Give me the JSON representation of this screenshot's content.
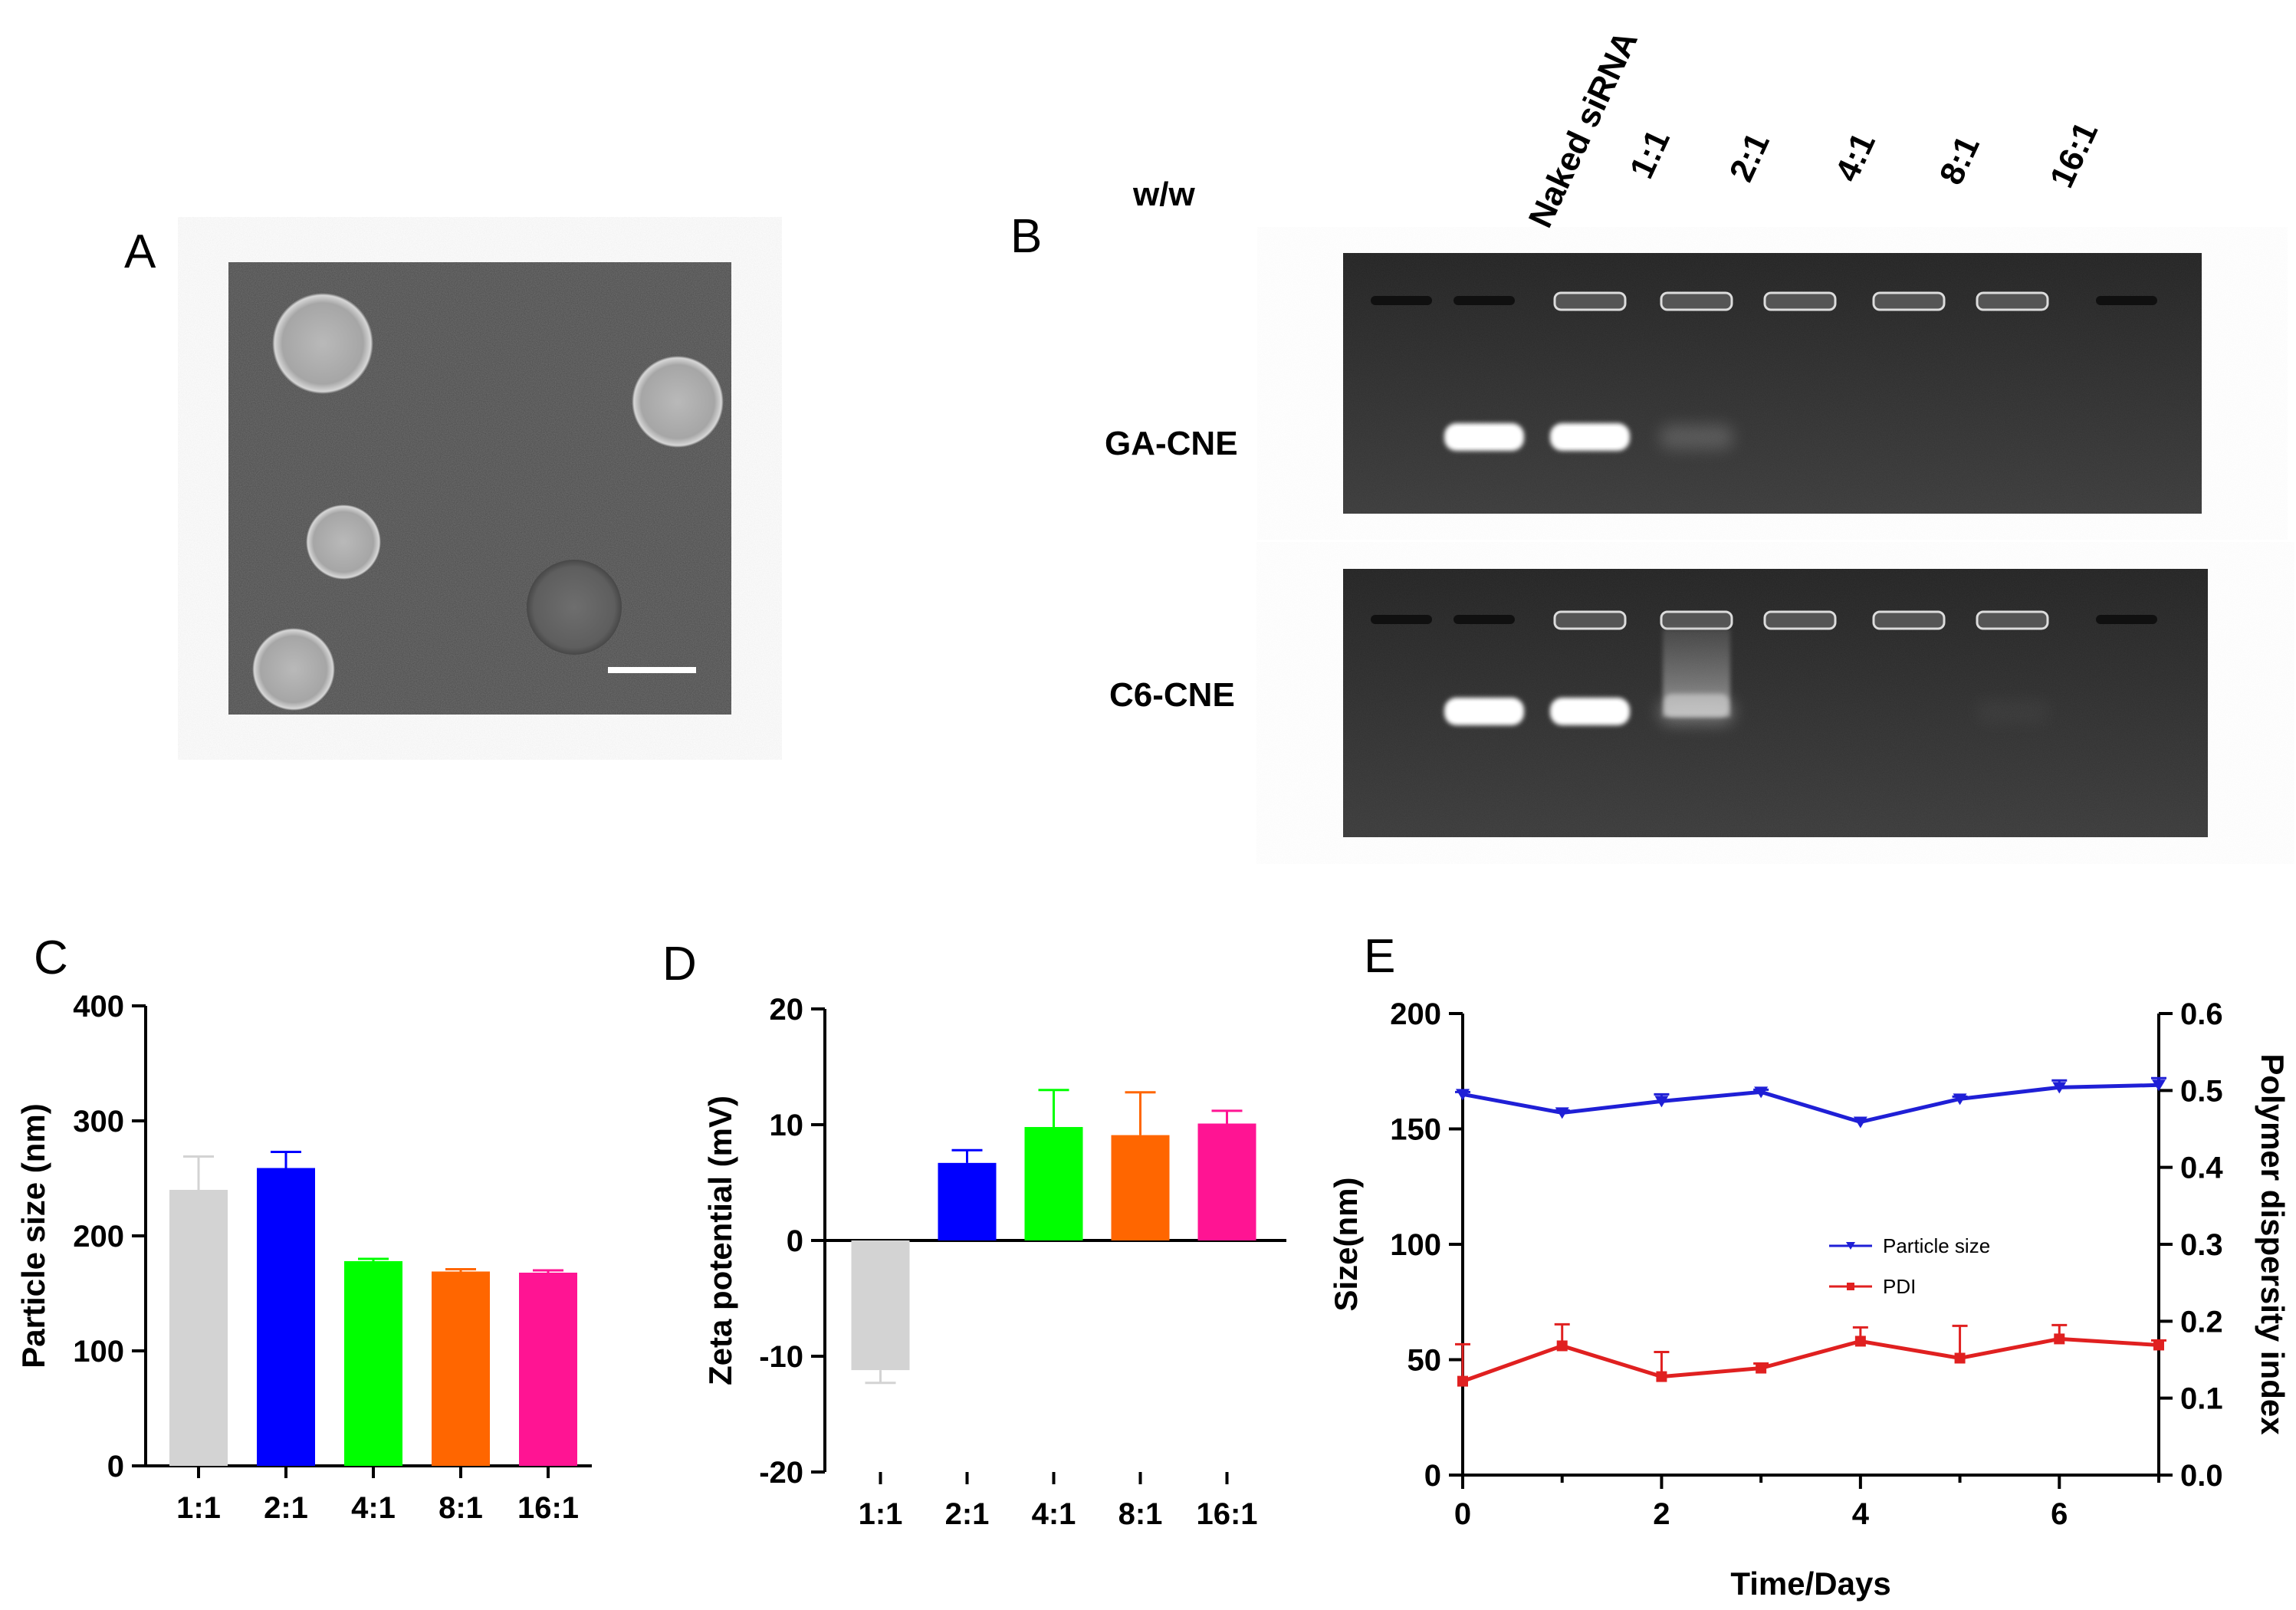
{
  "panels": {
    "A": {
      "letter": "A",
      "tem_image": "tem-micrograph-with-scale-bar"
    },
    "B": {
      "letter": "B",
      "ratio_caption": "w/w",
      "lanes": [
        "Naked siRNA",
        "1:1",
        "2:1",
        "4:1",
        "8:1",
        "16:1"
      ],
      "gels": [
        {
          "label": "GA-CNE",
          "band_intensity": [
            0,
            1.0,
            1.0,
            0.25,
            0,
            0,
            0,
            0
          ]
        },
        {
          "label": "C6-CNE",
          "band_intensity": [
            0,
            1.0,
            1.0,
            0.45,
            0,
            0,
            0.05,
            0
          ]
        }
      ]
    },
    "C": {
      "letter": "C"
    },
    "D": {
      "letter": "D"
    },
    "E": {
      "letter": "E"
    }
  },
  "chart_data": [
    {
      "panel": "C",
      "type": "bar",
      "categories": [
        "1:1",
        "2:1",
        "4:1",
        "8:1",
        "16:1"
      ],
      "values": [
        240,
        259,
        178,
        169,
        168
      ],
      "errors": [
        29,
        14,
        2,
        2,
        2
      ],
      "colors": [
        "#d3d3d3",
        "#0000ff",
        "#00ff00",
        "#ff6600",
        "#ff1493"
      ],
      "ylabel": "Particle size (nm)",
      "ylim": [
        0,
        400
      ],
      "yticks": [
        0,
        100,
        200,
        300,
        400
      ],
      "grid": false
    },
    {
      "panel": "D",
      "type": "bar",
      "categories": [
        "1:1",
        "2:1",
        "4:1",
        "8:1",
        "16:1"
      ],
      "values": [
        -11.2,
        6.7,
        9.8,
        9.1,
        10.1
      ],
      "errors": [
        1.1,
        1.1,
        3.2,
        3.7,
        1.1
      ],
      "colors": [
        "#d3d3d3",
        "#0000ff",
        "#00ff00",
        "#ff6600",
        "#ff1493"
      ],
      "ylabel": "Zeta potential  (mV)",
      "ylim": [
        -20,
        20
      ],
      "yticks": [
        -20,
        -10,
        0,
        10,
        20
      ],
      "grid": false
    },
    {
      "panel": "E",
      "type": "line",
      "xlabel": "Time/Days",
      "ylabel": "Size(nm)",
      "y2label": "Polymer dispersity index",
      "xlim": [
        0,
        7
      ],
      "xticks": [
        0,
        2,
        4,
        6
      ],
      "ylim": [
        0,
        200
      ],
      "yticks": [
        0,
        50,
        100,
        150,
        200
      ],
      "y2lim": [
        0.0,
        0.6
      ],
      "y2ticks": [
        "0.0",
        "0.1",
        "0.2",
        "0.3",
        "0.4",
        "0.5",
        "0.6"
      ],
      "legend_position": "center-right",
      "grid": false,
      "series": [
        {
          "name": "Particle size",
          "axis": "left",
          "color": "#1f1fd6",
          "marker": "triangle-down",
          "x": [
            0,
            1,
            2,
            3,
            4,
            5,
            6,
            7
          ],
          "y": [
            165,
            157,
            162,
            166,
            153,
            163,
            168,
            169
          ],
          "err": [
            1,
            1,
            3,
            1,
            1,
            1,
            3,
            3
          ]
        },
        {
          "name": "PDI",
          "axis": "right",
          "color": "#e02020",
          "marker": "square",
          "x": [
            0,
            1,
            2,
            3,
            4,
            5,
            6,
            7
          ],
          "y": [
            0.122,
            0.168,
            0.128,
            0.139,
            0.174,
            0.152,
            0.177,
            0.169
          ],
          "err": [
            0.048,
            0.028,
            0.032,
            0.006,
            0.018,
            0.042,
            0.018,
            0.006
          ]
        }
      ]
    }
  ]
}
